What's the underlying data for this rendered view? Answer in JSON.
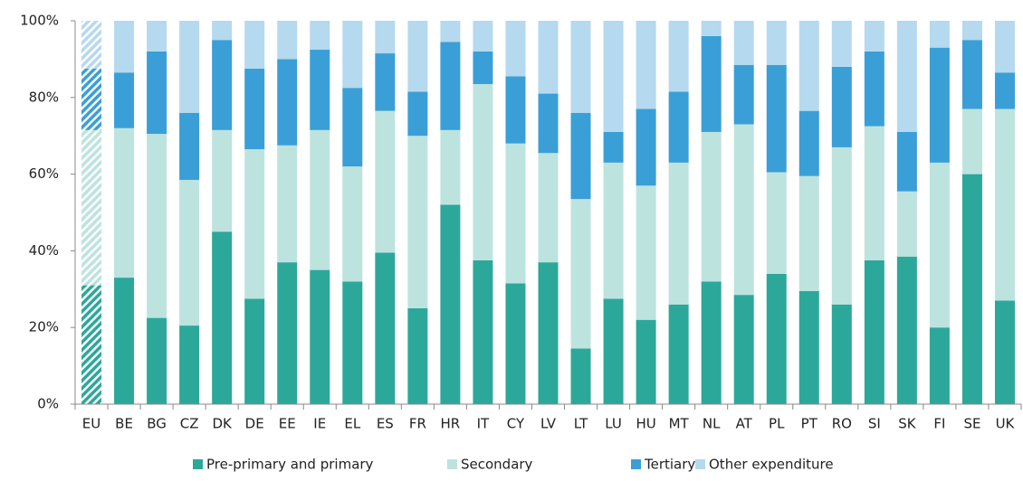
{
  "chart_data": {
    "type": "stacked_bar",
    "categories": [
      "EU",
      "BE",
      "BG",
      "CZ",
      "DK",
      "DE",
      "EE",
      "IE",
      "EL",
      "ES",
      "FR",
      "HR",
      "IT",
      "CY",
      "LV",
      "LT",
      "LU",
      "HU",
      "MT",
      "NL",
      "AT",
      "PL",
      "PT",
      "RO",
      "SI",
      "SK",
      "FI",
      "SE",
      "UK"
    ],
    "hatched_category": "EU",
    "series": [
      {
        "name": "Pre-primary and primary",
        "color": "#2ca89a",
        "values": [
          31,
          33,
          22.5,
          20.5,
          45,
          27.5,
          37,
          35,
          32,
          39.5,
          25,
          52,
          37.5,
          31.5,
          37,
          14.5,
          27.5,
          22,
          26,
          32,
          28.5,
          34,
          29.5,
          26,
          37.5,
          38.5,
          20,
          60,
          27
        ]
      },
      {
        "name": "Secondary",
        "color": "#bde3df",
        "values": [
          40.5,
          39,
          48,
          38,
          26.5,
          39,
          30.5,
          36.5,
          30,
          37,
          45,
          19.5,
          46,
          36.5,
          28.5,
          39,
          35.5,
          35,
          37,
          39,
          44.5,
          26.5,
          30,
          41,
          35,
          17,
          43,
          17,
          50
        ]
      },
      {
        "name": "Tertiary",
        "color": "#3a9fd6",
        "values": [
          16,
          14.5,
          21.5,
          17.5,
          23.5,
          21,
          22.5,
          21,
          20.5,
          15,
          11.5,
          23,
          8.5,
          17.5,
          15.5,
          22.5,
          8,
          20,
          18.5,
          25,
          15.5,
          28,
          17,
          21,
          19.5,
          15.5,
          30,
          18,
          9.5
        ]
      },
      {
        "name": "Other expenditure",
        "color": "#b5d9ee",
        "values": [
          12.5,
          13.5,
          8,
          24,
          5,
          12.5,
          10,
          7.5,
          17.5,
          8.5,
          18.5,
          5.5,
          8,
          14.5,
          19,
          24,
          29,
          23,
          18.5,
          4,
          11.5,
          11.5,
          23.5,
          12,
          8,
          29,
          7,
          5,
          13.5
        ]
      }
    ],
    "ylim": [
      0,
      100
    ],
    "yticks": [
      {
        "value": 0,
        "label": "0%"
      },
      {
        "value": 20,
        "label": "20%"
      },
      {
        "value": 40,
        "label": "40%"
      },
      {
        "value": 60,
        "label": "60%"
      },
      {
        "value": 80,
        "label": "80%"
      },
      {
        "value": 100,
        "label": "100%"
      }
    ],
    "legend": "bottom"
  }
}
